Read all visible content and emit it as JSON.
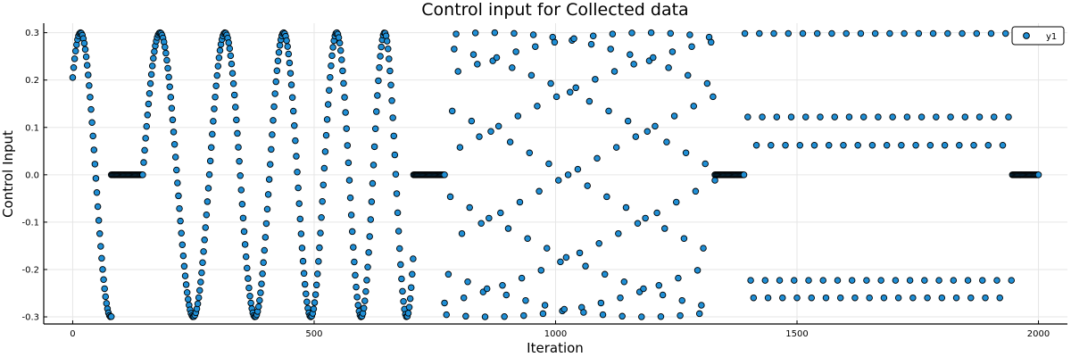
{
  "chart_data": {
    "type": "scatter",
    "title": "Control input for Collected data",
    "xlabel": "Iteration",
    "ylabel": "Control Input",
    "xlim": [
      -60,
      2060
    ],
    "ylim": [
      -0.315,
      0.32
    ],
    "xticks": [
      0,
      500,
      1000,
      1500,
      2000
    ],
    "xtick_labels": [
      "0",
      "500",
      "1000",
      "1500",
      "2000"
    ],
    "yticks": [
      -0.3,
      -0.2,
      -0.1,
      0.0,
      0.1,
      0.2,
      0.3
    ],
    "ytick_labels": [
      "-0.3",
      "-0.2",
      "-0.1",
      "0.0",
      "0.1",
      "0.2",
      "0.3"
    ],
    "grid": true,
    "legend_position": "top-right",
    "marker_color": "#1f8fd6",
    "marker_edge_color": "#000000",
    "series": [
      {
        "name": "y1",
        "segments": [
          {
            "x_start": 0,
            "x_end": 80,
            "step": 2,
            "amplitude": 0.3,
            "period": 125,
            "phase_x": -15,
            "kind": "sine"
          },
          {
            "x_start": 80,
            "x_end": 145,
            "step": 2,
            "value": 0.0,
            "kind": "constant"
          },
          {
            "x_start": 145,
            "x_end": 706,
            "step": 2,
            "amplitude": 0.3,
            "period_start": 145,
            "period_end": 88,
            "kind": "chirp",
            "phase_x0": 145,
            "phase_start_value": 0.0
          },
          {
            "x_start": 706,
            "x_end": 770,
            "step": 2,
            "value": 0.0,
            "kind": "constant"
          },
          {
            "x_start": 770,
            "x_end": 1330,
            "step": 4,
            "amplitude": 0.3,
            "period": 40.5,
            "phase_x": 783,
            "kind": "sine"
          },
          {
            "x_start": 1330,
            "x_end": 1390,
            "step": 2,
            "value": 0.0,
            "kind": "constant"
          },
          {
            "x_start": 1392,
            "x_end": 1944,
            "step": 6,
            "amplitude": 0.3,
            "period": 30,
            "phase_x": 1385,
            "kind": "sine"
          },
          {
            "x_start": 1946,
            "x_end": 2000,
            "step": 2,
            "value": 0.0,
            "kind": "constant"
          }
        ]
      }
    ]
  }
}
